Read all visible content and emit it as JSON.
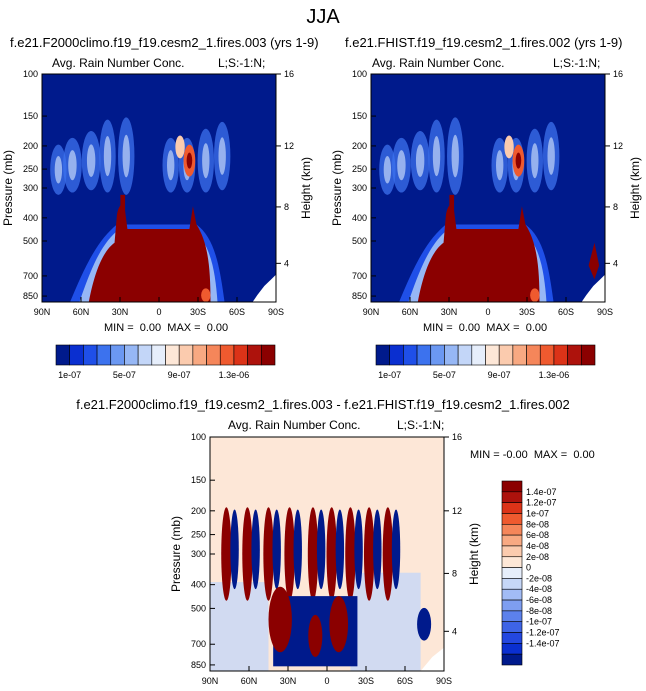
{
  "page_title": "JJA",
  "colors": {
    "contour_levels_abs": [
      "#001a8c",
      "#0a2fd0",
      "#1f4fe8",
      "#3c72ee",
      "#6b98f2",
      "#96b7f5",
      "#c3d6f8",
      "#e6eefb",
      "#fde7d7",
      "#fbcbae",
      "#f8a982",
      "#f5865a",
      "#ef5a2f",
      "#dc3318",
      "#ad120c",
      "#8b0000"
    ],
    "contour_levels_diff": [
      "#001a8c",
      "#0a2fd0",
      "#2347e0",
      "#3e64e6",
      "#5c81ec",
      "#7e9ef1",
      "#a2bcf5",
      "#c6d7f8",
      "#e6eefb",
      "#fde7d7",
      "#fbcbae",
      "#f8a982",
      "#f5865a",
      "#ef5a2f",
      "#dc3318",
      "#ad120c",
      "#8b0000"
    ]
  },
  "chart_data": [
    {
      "type": "heatmap",
      "title": "f.e21.F2000climo.f19_f19.cesm2_1.fires.003 (yrs 1-9)",
      "subtitle_left": "Avg. Rain Number Conc.",
      "subtitle_right": "L;S:-1:N;",
      "ylabel": "Pressure (mb)",
      "ylabel_right": "Height (km)",
      "x_ticks": [
        "90N",
        "60N",
        "30N",
        "0",
        "30S",
        "60S",
        "90S"
      ],
      "y_ticks": [
        "100",
        "150",
        "200",
        "250",
        "300",
        "400",
        "500",
        "700",
        "850"
      ],
      "y_ticks_right": [
        "16",
        "12",
        "8",
        "4"
      ],
      "stats": "MIN =  0.00  MAX =  0.00",
      "colorbar_labels": [
        "1e-07",
        "5e-07",
        "9e-07",
        "1.3e-06"
      ],
      "colorbar_orientation": "horizontal",
      "colorbar_levels": 16
    },
    {
      "type": "heatmap",
      "title": "f.e21.FHIST.f19_f19.cesm2_1.fires.002 (yrs 1-9)",
      "subtitle_left": "Avg. Rain Number Conc.",
      "subtitle_right": "L;S:-1:N;",
      "ylabel": "Pressure (mb)",
      "ylabel_right": "Height (km)",
      "x_ticks": [
        "90N",
        "60N",
        "30N",
        "0",
        "30S",
        "60S",
        "90S"
      ],
      "y_ticks": [
        "100",
        "150",
        "200",
        "250",
        "300",
        "400",
        "500",
        "700",
        "850"
      ],
      "y_ticks_right": [
        "16",
        "12",
        "8",
        "4"
      ],
      "stats": "MIN =  0.00  MAX =  0.00",
      "colorbar_labels": [
        "1e-07",
        "5e-07",
        "9e-07",
        "1.3e-06"
      ],
      "colorbar_orientation": "horizontal",
      "colorbar_levels": 16
    },
    {
      "type": "heatmap",
      "title": "f.e21.F2000climo.f19_f19.cesm2_1.fires.003 - f.e21.FHIST.f19_f19.cesm2_1.fires.002",
      "subtitle_left": "Avg. Rain Number Conc.",
      "subtitle_right": "L;S:-1:N;",
      "ylabel": "Pressure (mb)",
      "ylabel_right": "Height (km)",
      "x_ticks": [
        "90N",
        "60N",
        "30N",
        "0",
        "30S",
        "60S",
        "90S"
      ],
      "y_ticks": [
        "100",
        "150",
        "200",
        "250",
        "300",
        "400",
        "500",
        "700",
        "850"
      ],
      "y_ticks_right": [
        "16",
        "12",
        "8",
        "4"
      ],
      "stats": "MIN = -0.00  MAX =  0.00",
      "colorbar_labels": [
        "1.4e-07",
        "1.2e-07",
        "1e-07",
        "8e-08",
        "6e-08",
        "4e-08",
        "2e-08",
        "0",
        "-2e-08",
        "-4e-08",
        "-6e-08",
        "-8e-08",
        "-1e-07",
        "-1.2e-07",
        "-1.4e-07"
      ],
      "colorbar_orientation": "vertical",
      "colorbar_levels": 17
    }
  ]
}
